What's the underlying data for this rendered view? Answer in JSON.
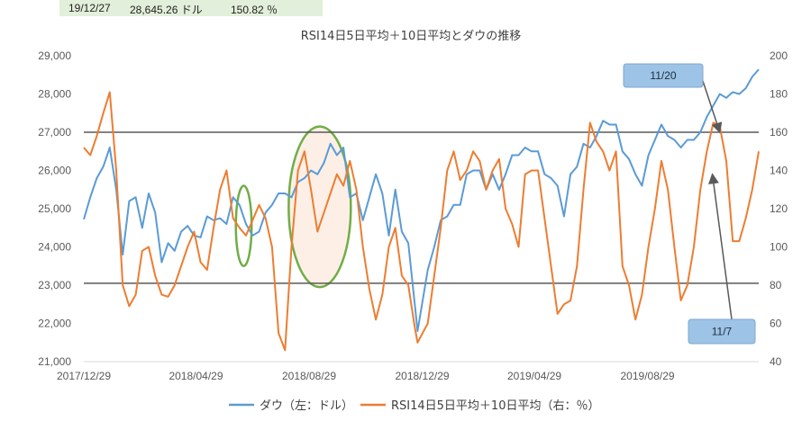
{
  "info": {
    "date": "19/12/27",
    "dow": "28,645.26 ドル",
    "rsi": "150.82 ％"
  },
  "chart_data": {
    "type": "line",
    "title": "RSI14日5日平均＋10日平均とダウの推移",
    "x_ticks": [
      "2017/12/29",
      "2018/04/29",
      "2018/08/29",
      "2018/12/29",
      "2019/04/29",
      "2019/08/29"
    ],
    "y_left": {
      "ticks": [
        "21,000",
        "22,000",
        "23,000",
        "24,000",
        "25,000",
        "26,000",
        "27,000",
        "28,000",
        "29,000"
      ],
      "min": 21000,
      "max": 29000
    },
    "y_right": {
      "ticks": [
        "40",
        "60",
        "80",
        "100",
        "120",
        "140",
        "160",
        "180",
        "200"
      ],
      "min": 40,
      "max": 200
    },
    "reference_lines_left": [
      23050,
      27000
    ],
    "grid": false,
    "legend_position": "bottom",
    "colors": {
      "dow": "#5b9bd5",
      "rsi": "#ed7d31",
      "ref": "#595959",
      "ellipse": "#70ad47",
      "shade": "#fbe5d6",
      "callout": "#9dc3e6"
    },
    "series": [
      {
        "name": "ダウ（左：ドル）",
        "axis": "left",
        "points": [
          [
            "2017/12/29",
            24720
          ],
          [
            "2018/01/05",
            25300
          ],
          [
            "2018/01/12",
            25800
          ],
          [
            "2018/01/19",
            26100
          ],
          [
            "2018/01/26",
            26600
          ],
          [
            "2018/02/02",
            25500
          ],
          [
            "2018/02/09",
            23800
          ],
          [
            "2018/02/16",
            25200
          ],
          [
            "2018/02/23",
            25300
          ],
          [
            "2018/03/02",
            24500
          ],
          [
            "2018/03/09",
            25400
          ],
          [
            "2018/03/16",
            24900
          ],
          [
            "2018/03/23",
            23600
          ],
          [
            "2018/03/30",
            24100
          ],
          [
            "2018/04/06",
            23900
          ],
          [
            "2018/04/13",
            24400
          ],
          [
            "2018/04/20",
            24550
          ],
          [
            "2018/04/27",
            24300
          ],
          [
            "2018/05/04",
            24250
          ],
          [
            "2018/05/11",
            24800
          ],
          [
            "2018/05/18",
            24700
          ],
          [
            "2018/05/25",
            24750
          ],
          [
            "2018/06/01",
            24600
          ],
          [
            "2018/06/08",
            25300
          ],
          [
            "2018/06/15",
            25100
          ],
          [
            "2018/06/22",
            24600
          ],
          [
            "2018/06/29",
            24300
          ],
          [
            "2018/07/06",
            24400
          ],
          [
            "2018/07/13",
            24900
          ],
          [
            "2018/07/20",
            25100
          ],
          [
            "2018/07/27",
            25400
          ],
          [
            "2018/08/03",
            25400
          ],
          [
            "2018/08/10",
            25300
          ],
          [
            "2018/08/17",
            25700
          ],
          [
            "2018/08/24",
            25800
          ],
          [
            "2018/08/31",
            26000
          ],
          [
            "2018/09/07",
            25900
          ],
          [
            "2018/09/14",
            26200
          ],
          [
            "2018/09/21",
            26700
          ],
          [
            "2018/09/28",
            26400
          ],
          [
            "2018/10/05",
            26600
          ],
          [
            "2018/10/12",
            25300
          ],
          [
            "2018/10/19",
            25400
          ],
          [
            "2018/10/26",
            24700
          ],
          [
            "2018/11/02",
            25300
          ],
          [
            "2018/11/09",
            25900
          ],
          [
            "2018/11/16",
            25400
          ],
          [
            "2018/11/23",
            24300
          ],
          [
            "2018/11/30",
            25500
          ],
          [
            "2018/12/07",
            24400
          ],
          [
            "2018/12/14",
            24100
          ],
          [
            "2018/12/21",
            22500
          ],
          [
            "2018/12/24",
            21800
          ],
          [
            "2019/01/04",
            23400
          ],
          [
            "2019/01/11",
            24000
          ],
          [
            "2019/01/18",
            24700
          ],
          [
            "2019/01/25",
            24800
          ],
          [
            "2019/02/01",
            25100
          ],
          [
            "2019/02/08",
            25100
          ],
          [
            "2019/02/15",
            25900
          ],
          [
            "2019/02/22",
            26000
          ],
          [
            "2019/03/01",
            26000
          ],
          [
            "2019/03/08",
            25500
          ],
          [
            "2019/03/15",
            25900
          ],
          [
            "2019/03/22",
            25500
          ],
          [
            "2019/03/29",
            25900
          ],
          [
            "2019/04/05",
            26400
          ],
          [
            "2019/04/12",
            26400
          ],
          [
            "2019/04/19",
            26600
          ],
          [
            "2019/04/26",
            26500
          ],
          [
            "2019/05/03",
            26500
          ],
          [
            "2019/05/10",
            25900
          ],
          [
            "2019/05/17",
            25800
          ],
          [
            "2019/05/24",
            25600
          ],
          [
            "2019/05/31",
            24800
          ],
          [
            "2019/06/07",
            25900
          ],
          [
            "2019/06/14",
            26100
          ],
          [
            "2019/06/21",
            26700
          ],
          [
            "2019/06/28",
            26600
          ],
          [
            "2019/07/05",
            26900
          ],
          [
            "2019/07/12",
            27300
          ],
          [
            "2019/07/19",
            27200
          ],
          [
            "2019/07/26",
            27200
          ],
          [
            "2019/08/02",
            26500
          ],
          [
            "2019/08/09",
            26300
          ],
          [
            "2019/08/16",
            25900
          ],
          [
            "2019/08/23",
            25600
          ],
          [
            "2019/08/30",
            26400
          ],
          [
            "2019/09/06",
            26800
          ],
          [
            "2019/09/13",
            27200
          ],
          [
            "2019/09/20",
            26900
          ],
          [
            "2019/09/27",
            26800
          ],
          [
            "2019/10/04",
            26600
          ],
          [
            "2019/10/11",
            26800
          ],
          [
            "2019/10/18",
            26800
          ],
          [
            "2019/10/25",
            27000
          ],
          [
            "2019/11/01",
            27400
          ],
          [
            "2019/11/08",
            27700
          ],
          [
            "2019/11/15",
            28000
          ],
          [
            "2019/11/22",
            27900
          ],
          [
            "2019/11/29",
            28050
          ],
          [
            "2019/12/06",
            28000
          ],
          [
            "2019/12/13",
            28150
          ],
          [
            "2019/12/20",
            28450
          ],
          [
            "2019/12/27",
            28645
          ]
        ]
      },
      {
        "name": "RSI14日5日平均＋10日平均（右：％）",
        "axis": "right",
        "points": [
          [
            "2017/12/29",
            152
          ],
          [
            "2018/01/05",
            148
          ],
          [
            "2018/01/12",
            158
          ],
          [
            "2018/01/19",
            170
          ],
          [
            "2018/01/26",
            181
          ],
          [
            "2018/02/02",
            140
          ],
          [
            "2018/02/09",
            80
          ],
          [
            "2018/02/16",
            69
          ],
          [
            "2018/02/23",
            75
          ],
          [
            "2018/03/02",
            98
          ],
          [
            "2018/03/09",
            100
          ],
          [
            "2018/03/16",
            85
          ],
          [
            "2018/03/23",
            75
          ],
          [
            "2018/03/30",
            74
          ],
          [
            "2018/04/06",
            80
          ],
          [
            "2018/04/13",
            90
          ],
          [
            "2018/04/20",
            100
          ],
          [
            "2018/04/27",
            108
          ],
          [
            "2018/05/04",
            92
          ],
          [
            "2018/05/11",
            88
          ],
          [
            "2018/05/18",
            110
          ],
          [
            "2018/05/25",
            130
          ],
          [
            "2018/06/01",
            140
          ],
          [
            "2018/06/08",
            115
          ],
          [
            "2018/06/15",
            110
          ],
          [
            "2018/06/22",
            106
          ],
          [
            "2018/06/29",
            114
          ],
          [
            "2018/07/06",
            122
          ],
          [
            "2018/07/13",
            115
          ],
          [
            "2018/07/20",
            100
          ],
          [
            "2018/07/27",
            55
          ],
          [
            "2018/08/03",
            46
          ],
          [
            "2018/08/10",
            100
          ],
          [
            "2018/08/17",
            140
          ],
          [
            "2018/08/24",
            150
          ],
          [
            "2018/08/31",
            130
          ],
          [
            "2018/09/07",
            108
          ],
          [
            "2018/09/14",
            118
          ],
          [
            "2018/09/21",
            128
          ],
          [
            "2018/09/28",
            138
          ],
          [
            "2018/10/05",
            132
          ],
          [
            "2018/10/12",
            145
          ],
          [
            "2018/10/19",
            130
          ],
          [
            "2018/10/26",
            100
          ],
          [
            "2018/11/02",
            78
          ],
          [
            "2018/11/09",
            62
          ],
          [
            "2018/11/16",
            75
          ],
          [
            "2018/11/23",
            100
          ],
          [
            "2018/11/30",
            110
          ],
          [
            "2018/12/07",
            85
          ],
          [
            "2018/12/14",
            80
          ],
          [
            "2018/12/21",
            58
          ],
          [
            "2018/12/24",
            50
          ],
          [
            "2019/01/04",
            60
          ],
          [
            "2019/01/11",
            85
          ],
          [
            "2019/01/18",
            110
          ],
          [
            "2019/01/25",
            140
          ],
          [
            "2019/02/01",
            150
          ],
          [
            "2019/02/08",
            135
          ],
          [
            "2019/02/15",
            140
          ],
          [
            "2019/02/22",
            150
          ],
          [
            "2019/03/01",
            145
          ],
          [
            "2019/03/08",
            130
          ],
          [
            "2019/03/15",
            140
          ],
          [
            "2019/03/22",
            146
          ],
          [
            "2019/03/29",
            120
          ],
          [
            "2019/04/05",
            112
          ],
          [
            "2019/04/12",
            100
          ],
          [
            "2019/04/19",
            138
          ],
          [
            "2019/04/26",
            140
          ],
          [
            "2019/05/03",
            140
          ],
          [
            "2019/05/10",
            115
          ],
          [
            "2019/05/17",
            90
          ],
          [
            "2019/05/24",
            65
          ],
          [
            "2019/05/31",
            70
          ],
          [
            "2019/06/07",
            72
          ],
          [
            "2019/06/14",
            90
          ],
          [
            "2019/06/21",
            130
          ],
          [
            "2019/06/28",
            165
          ],
          [
            "2019/07/05",
            155
          ],
          [
            "2019/07/12",
            150
          ],
          [
            "2019/07/19",
            140
          ],
          [
            "2019/07/26",
            150
          ],
          [
            "2019/08/02",
            90
          ],
          [
            "2019/08/09",
            80
          ],
          [
            "2019/08/16",
            62
          ],
          [
            "2019/08/23",
            75
          ],
          [
            "2019/08/30",
            100
          ],
          [
            "2019/09/06",
            120
          ],
          [
            "2019/09/13",
            145
          ],
          [
            "2019/09/20",
            130
          ],
          [
            "2019/09/27",
            100
          ],
          [
            "2019/10/04",
            72
          ],
          [
            "2019/10/11",
            80
          ],
          [
            "2019/10/18",
            100
          ],
          [
            "2019/10/25",
            130
          ],
          [
            "2019/11/01",
            150
          ],
          [
            "2019/11/08",
            165
          ],
          [
            "2019/11/15",
            163
          ],
          [
            "2019/11/22",
            145
          ],
          [
            "2019/11/29",
            103
          ],
          [
            "2019/12/06",
            103
          ],
          [
            "2019/12/13",
            115
          ],
          [
            "2019/12/20",
            130
          ],
          [
            "2019/12/27",
            150
          ]
        ]
      }
    ],
    "annotations": [
      {
        "label": "11/20",
        "target_date": "2019/11/15",
        "target_axis": "left",
        "target_value": 27000
      },
      {
        "label": "11/7",
        "target_date": "2019/11/07",
        "target_axis": "right",
        "target_value": 138
      }
    ],
    "highlights": [
      {
        "start": "2018/06/11",
        "end": "2018/06/28",
        "left_low": 23500,
        "left_high": 25600
      },
      {
        "start": "2018/08/07",
        "end": "2018/10/13",
        "left_low": 22950,
        "left_high": 27150,
        "shaded": true
      }
    ]
  }
}
